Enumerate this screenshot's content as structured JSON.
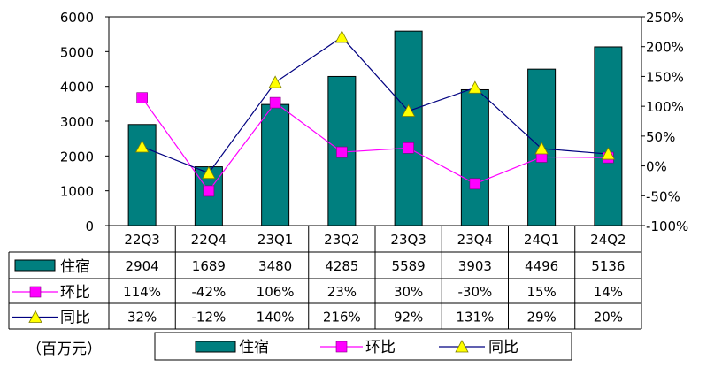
{
  "chart_data": {
    "type": "bar",
    "categories": [
      "22Q3",
      "22Q4",
      "23Q1",
      "23Q2",
      "23Q3",
      "23Q4",
      "24Q1",
      "24Q2"
    ],
    "series": [
      {
        "name": "住宿",
        "kind": "bar",
        "axis": "left",
        "values": [
          2904,
          1689,
          3480,
          4285,
          5589,
          3903,
          4496,
          5136
        ],
        "labels": [
          "2904",
          "1689",
          "3480",
          "4285",
          "5589",
          "3903",
          "4496",
          "5136"
        ],
        "color": "#007f7f"
      },
      {
        "name": "环比",
        "kind": "line",
        "axis": "right",
        "marker": "square",
        "values": [
          114,
          -42,
          106,
          23,
          30,
          -30,
          15,
          14
        ],
        "labels": [
          "114%",
          "-42%",
          "106%",
          "23%",
          "30%",
          "-30%",
          "15%",
          "14%"
        ],
        "color": "#ff00ff"
      },
      {
        "name": "同比",
        "kind": "line",
        "axis": "right",
        "marker": "triangle",
        "values": [
          32,
          -12,
          140,
          216,
          92,
          131,
          29,
          20
        ],
        "labels": [
          "32%",
          "-12%",
          "140%",
          "216%",
          "92%",
          "131%",
          "29%",
          "20%"
        ],
        "color": "#000080",
        "marker_color": "#ffff00"
      }
    ],
    "y_left": {
      "min": 0,
      "max": 6000,
      "ticks": [
        0,
        1000,
        2000,
        3000,
        4000,
        5000,
        6000
      ]
    },
    "y_right": {
      "min": -100,
      "max": 250,
      "ticks": [
        -100,
        -50,
        0,
        50,
        100,
        150,
        200,
        250
      ],
      "tick_labels": [
        "-100%",
        "-50%",
        "0%",
        "50%",
        "100%",
        "150%",
        "200%",
        "250%"
      ]
    },
    "unit_label": "（百万元）",
    "legend": [
      "住宿",
      "环比",
      "同比"
    ],
    "legend_placement": "bottom"
  }
}
